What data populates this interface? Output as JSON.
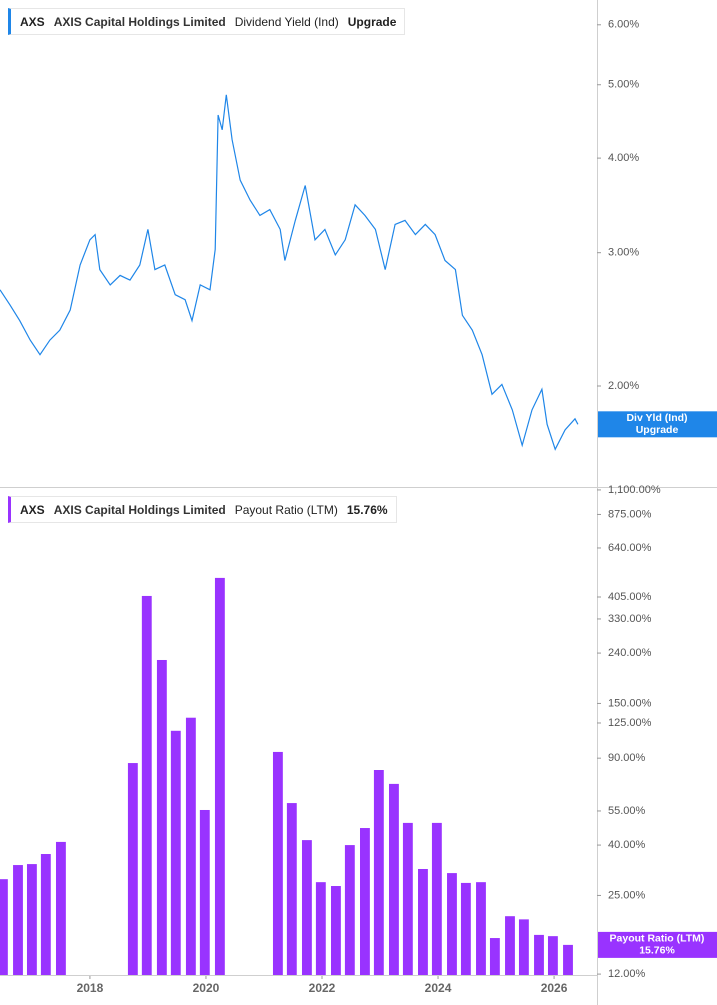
{
  "chart_data": [
    {
      "type": "line",
      "ticker": "AXS",
      "company": "AXIS Capital Holdings Limited",
      "status": "Upgrade",
      "tag_label": "Div Yld (Ind)",
      "log": true,
      "series": [
        {
          "name": "Dividend Yield (Ind)",
          "color": "#1f86e8",
          "x": [
            2016.45,
            2016.62,
            2016.79,
            2016.97,
            2017.14,
            2017.31,
            2017.48,
            2017.66,
            2017.83,
            2018.0,
            2018.09,
            2018.17,
            2018.35,
            2018.52,
            2018.69,
            2018.86,
            2019.0,
            2019.12,
            2019.29,
            2019.47,
            2019.64,
            2019.76,
            2019.9,
            2020.07,
            2020.16,
            2020.21,
            2020.28,
            2020.35,
            2020.45,
            2020.59,
            2020.76,
            2020.93,
            2021.1,
            2021.28,
            2021.36,
            2021.54,
            2021.71,
            2021.88,
            2022.05,
            2022.23,
            2022.4,
            2022.57,
            2022.74,
            2022.92,
            2023.09,
            2023.26,
            2023.43,
            2023.61,
            2023.78,
            2023.95,
            2024.12,
            2024.3,
            2024.42,
            2024.59,
            2024.76,
            2024.93,
            2025.1,
            2025.28,
            2025.45,
            2025.62,
            2025.79,
            2025.88,
            2026.02,
            2026.19,
            2026.36,
            2026.41
          ],
          "values": [
            2.68,
            2.56,
            2.44,
            2.3,
            2.2,
            2.3,
            2.37,
            2.52,
            2.89,
            3.12,
            3.17,
            2.85,
            2.72,
            2.8,
            2.76,
            2.89,
            3.22,
            2.85,
            2.89,
            2.64,
            2.6,
            2.44,
            2.72,
            2.68,
            3.03,
            4.56,
            4.36,
            4.85,
            4.23,
            3.74,
            3.52,
            3.36,
            3.42,
            3.22,
            2.93,
            3.31,
            3.68,
            3.12,
            3.22,
            2.98,
            3.12,
            3.47,
            3.36,
            3.22,
            2.85,
            3.27,
            3.31,
            3.17,
            3.27,
            3.17,
            2.93,
            2.85,
            2.48,
            2.37,
            2.2,
            1.95,
            2.01,
            1.86,
            1.67,
            1.86,
            1.98,
            1.78,
            1.65,
            1.75,
            1.81,
            1.78
          ]
        }
      ],
      "xlim": [
        2016.45,
        2026.74
      ],
      "ylim": [
        1.48,
        6.47
      ],
      "yticks": [
        {
          "value": 2,
          "label": "2.00%"
        },
        {
          "value": 3,
          "label": "3.00%"
        },
        {
          "value": 4,
          "label": "4.00%"
        },
        {
          "value": 5,
          "label": "5.00%"
        },
        {
          "value": 6,
          "label": "6.00%"
        }
      ]
    },
    {
      "type": "bar",
      "ticker": "AXS",
      "company": "AXIS Capital Holdings Limited",
      "tag_label": "Payout Ratio (LTM)",
      "log": true,
      "latest": {
        "value": 15.76,
        "label": "15.76%"
      },
      "series": [
        {
          "name": "Payout Ratio (LTM)",
          "color": "#9933ff",
          "x": [
            2016.5,
            2016.76,
            2017.0,
            2017.24,
            2017.5,
            2018.74,
            2018.98,
            2019.24,
            2019.48,
            2019.74,
            2019.98,
            2020.24,
            2021.24,
            2021.48,
            2021.74,
            2021.98,
            2022.24,
            2022.48,
            2022.74,
            2022.98,
            2023.24,
            2023.48,
            2023.74,
            2023.98,
            2024.24,
            2024.48,
            2024.74,
            2024.98,
            2025.24,
            2025.48,
            2025.74,
            2025.98,
            2026.24
          ],
          "values": [
            29.1,
            33.2,
            33.5,
            36.8,
            41.2,
            86.0,
            409,
            225,
            116.2,
            131.3,
            55.5,
            484,
            95.4,
            59.2,
            41.9,
            28.3,
            27.3,
            40.0,
            46.9,
            80.6,
            70.8,
            49.2,
            32.0,
            49.2,
            30.8,
            28.1,
            28.3,
            16.8,
            20.6,
            20.0,
            17.3,
            17.1,
            15.76
          ]
        }
      ],
      "xlim": [
        2016.45,
        2026.74
      ],
      "xticks": [
        2018,
        2020,
        2022,
        2024,
        2026
      ],
      "ylim": [
        11.9,
        1120
      ],
      "yticks": [
        {
          "value": 12,
          "label": "12.00%"
        },
        {
          "value": 25,
          "label": "25.00%"
        },
        {
          "value": 40,
          "label": "40.00%"
        },
        {
          "value": 55,
          "label": "55.00%"
        },
        {
          "value": 90,
          "label": "90.00%"
        },
        {
          "value": 125,
          "label": "125.00%"
        },
        {
          "value": 150,
          "label": "150.00%"
        },
        {
          "value": 240,
          "label": "240.00%"
        },
        {
          "value": 330,
          "label": "330.00%"
        },
        {
          "value": 405,
          "label": "405.00%"
        },
        {
          "value": 640,
          "label": "640.00%"
        },
        {
          "value": 875,
          "label": "875.00%"
        },
        {
          "value": 1100,
          "label": "1,100.00%"
        }
      ]
    }
  ]
}
